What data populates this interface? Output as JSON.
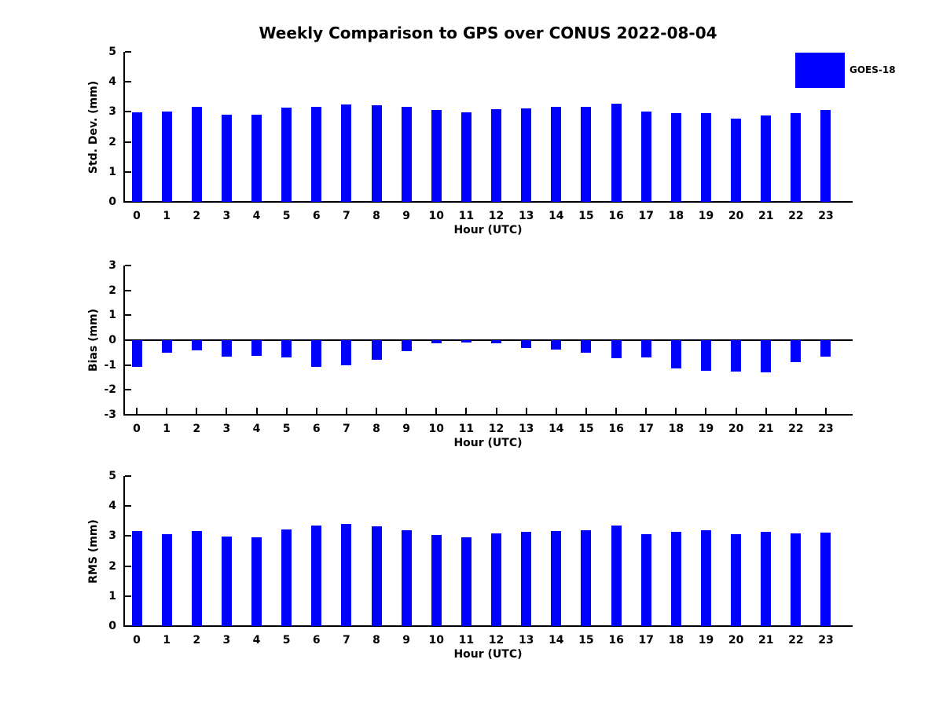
{
  "figure": {
    "title": "Weekly Comparison to GPS over CONUS 2022-08-04",
    "background": "#ffffff"
  },
  "legend": {
    "label": "GOES-18",
    "swatch_color": "#0000ff"
  },
  "colors": {
    "bar": "#0000ff",
    "axis": "#000000",
    "text": "#000000"
  },
  "chart_data": [
    {
      "type": "bar",
      "name": "std-dev",
      "title": "",
      "ylabel": "Std. Dev. (mm)",
      "xlabel": "Hour (UTC)",
      "categories": [
        "0",
        "1",
        "2",
        "3",
        "4",
        "5",
        "6",
        "7",
        "8",
        "9",
        "10",
        "11",
        "12",
        "13",
        "14",
        "15",
        "16",
        "17",
        "18",
        "19",
        "20",
        "21",
        "22",
        "23"
      ],
      "series": [
        {
          "name": "GOES-18",
          "values": [
            2.98,
            3.02,
            3.17,
            2.9,
            2.91,
            3.13,
            3.16,
            3.24,
            3.22,
            3.16,
            3.06,
            2.98,
            3.09,
            3.12,
            3.16,
            3.17,
            3.27,
            3.01,
            2.97,
            2.95,
            2.77,
            2.87,
            2.96,
            3.07
          ]
        }
      ],
      "ylim": [
        0,
        5
      ],
      "yticks": [
        0,
        1,
        2,
        3,
        4,
        5
      ],
      "grid": false,
      "legend_position": "outside-top-right"
    },
    {
      "type": "bar",
      "name": "bias",
      "title": "",
      "ylabel": "Bias (mm)",
      "xlabel": "Hour (UTC)",
      "categories": [
        "0",
        "1",
        "2",
        "3",
        "4",
        "5",
        "6",
        "7",
        "8",
        "9",
        "10",
        "11",
        "12",
        "13",
        "14",
        "15",
        "16",
        "17",
        "18",
        "19",
        "20",
        "21",
        "22",
        "23"
      ],
      "series": [
        {
          "name": "GOES-18",
          "values": [
            -1.08,
            -0.52,
            -0.42,
            -0.66,
            -0.62,
            -0.69,
            -1.07,
            -1.01,
            -0.79,
            -0.45,
            -0.13,
            -0.08,
            -0.13,
            -0.33,
            -0.38,
            -0.52,
            -0.72,
            -0.7,
            -1.13,
            -1.24,
            -1.26,
            -1.29,
            -0.89,
            -0.67
          ]
        }
      ],
      "ylim": [
        -3,
        3
      ],
      "yticks": [
        -3,
        -2,
        -1,
        0,
        1,
        2,
        3
      ],
      "grid": false,
      "legend_position": "none"
    },
    {
      "type": "bar",
      "name": "rms",
      "title": "",
      "ylabel": "RMS (mm)",
      "xlabel": "Hour (UTC)",
      "categories": [
        "0",
        "1",
        "2",
        "3",
        "4",
        "5",
        "6",
        "7",
        "8",
        "9",
        "10",
        "11",
        "12",
        "13",
        "14",
        "15",
        "16",
        "17",
        "18",
        "19",
        "20",
        "21",
        "22",
        "23"
      ],
      "series": [
        {
          "name": "GOES-18",
          "values": [
            3.16,
            3.06,
            3.16,
            2.98,
            2.95,
            3.22,
            3.34,
            3.41,
            3.33,
            3.19,
            3.04,
            2.97,
            3.09,
            3.13,
            3.17,
            3.19,
            3.34,
            3.06,
            3.15,
            3.19,
            3.07,
            3.14,
            3.1,
            3.12
          ]
        }
      ],
      "ylim": [
        0,
        5
      ],
      "yticks": [
        0,
        1,
        2,
        3,
        4,
        5
      ],
      "grid": false,
      "legend_position": "none"
    }
  ]
}
